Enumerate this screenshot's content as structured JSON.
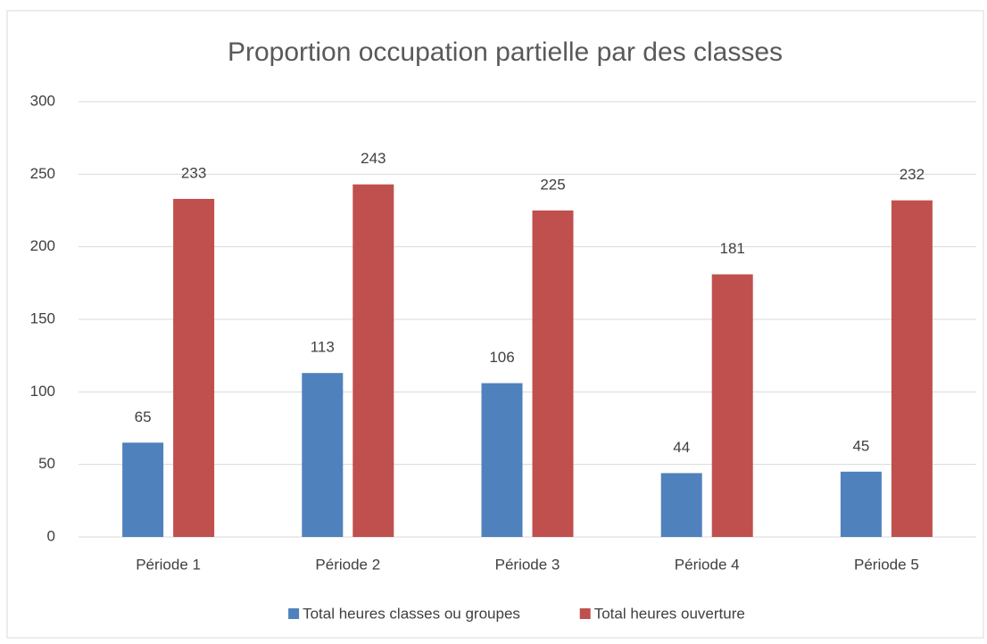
{
  "chart_data": {
    "type": "bar",
    "title": "Proportion occupation partielle par des classes",
    "categories": [
      "Période 1",
      "Période 2",
      "Période 3",
      "Période 4",
      "Période 5"
    ],
    "series": [
      {
        "name": "Total heures classes ou groupes",
        "color": "#4f81bd",
        "values": [
          65,
          113,
          106,
          44,
          45
        ]
      },
      {
        "name": "Total heures ouverture",
        "color": "#c0504d",
        "values": [
          233,
          243,
          225,
          181,
          232
        ]
      }
    ],
    "ylim": [
      0,
      300
    ],
    "yticks": [
      0,
      50,
      100,
      150,
      200,
      250,
      300
    ],
    "grid": true,
    "legend": "bottom"
  }
}
